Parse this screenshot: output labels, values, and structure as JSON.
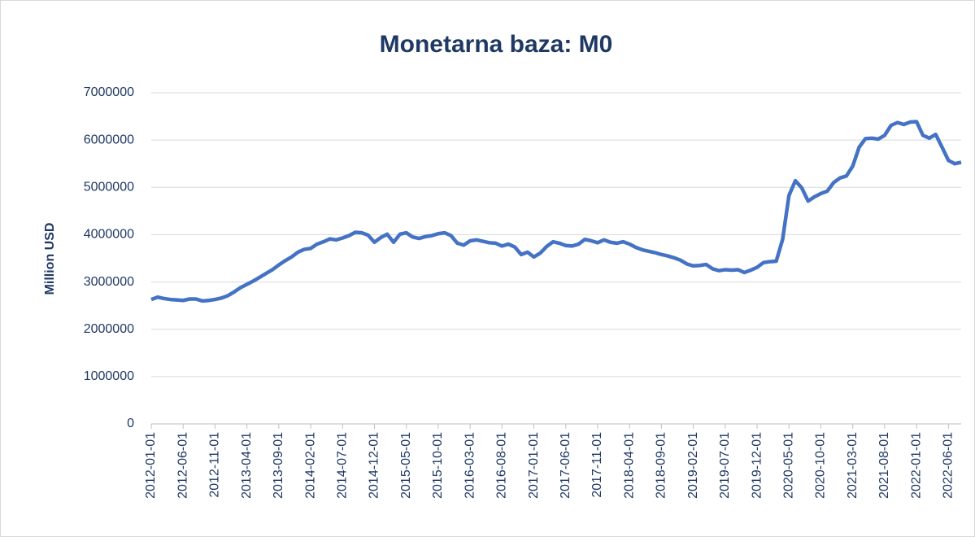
{
  "chart_data": {
    "type": "line",
    "title": "Monetarna baza: M0",
    "y_label": "Million USD",
    "categories": [
      "2012-01-01",
      null,
      null,
      null,
      null,
      "2012-06-01",
      null,
      null,
      null,
      null,
      "2012-11-01",
      null,
      null,
      null,
      null,
      "2013-04-01",
      null,
      null,
      null,
      null,
      "2013-09-01",
      null,
      null,
      null,
      null,
      "2014-02-01",
      null,
      null,
      null,
      null,
      "2014-07-01",
      null,
      null,
      null,
      null,
      "2014-12-01",
      null,
      null,
      null,
      null,
      "2015-05-01",
      null,
      null,
      null,
      null,
      "2015-10-01",
      null,
      null,
      null,
      null,
      "2016-03-01",
      null,
      null,
      null,
      null,
      "2016-08-01",
      null,
      null,
      null,
      null,
      "2017-01-01",
      null,
      null,
      null,
      null,
      "2017-06-01",
      null,
      null,
      null,
      null,
      "2017-11-01",
      null,
      null,
      null,
      null,
      "2018-04-01",
      null,
      null,
      null,
      null,
      "2018-09-01",
      null,
      null,
      null,
      null,
      "2019-02-01",
      null,
      null,
      null,
      null,
      "2019-07-01",
      null,
      null,
      null,
      null,
      "2019-12-01",
      null,
      null,
      null,
      null,
      "2020-05-01",
      null,
      null,
      null,
      null,
      "2020-10-01",
      null,
      null,
      null,
      null,
      "2021-03-01",
      null,
      null,
      null,
      null,
      "2021-08-01",
      null,
      null,
      null,
      null,
      "2022-01-01",
      null,
      null,
      null,
      null,
      "2022-06-01",
      null,
      null
    ],
    "series": [
      {
        "name": "M0",
        "color": "#4472c4",
        "values": [
          2630000,
          2680000,
          2650000,
          2630000,
          2620000,
          2610000,
          2640000,
          2640000,
          2600000,
          2610000,
          2630000,
          2660000,
          2710000,
          2790000,
          2880000,
          2950000,
          3020000,
          3100000,
          3180000,
          3260000,
          3360000,
          3450000,
          3530000,
          3630000,
          3690000,
          3710000,
          3800000,
          3850000,
          3910000,
          3890000,
          3930000,
          3980000,
          4050000,
          4040000,
          3990000,
          3840000,
          3940000,
          4010000,
          3840000,
          4010000,
          4040000,
          3950000,
          3920000,
          3960000,
          3980000,
          4020000,
          4040000,
          3980000,
          3820000,
          3780000,
          3870000,
          3890000,
          3860000,
          3830000,
          3820000,
          3760000,
          3800000,
          3740000,
          3580000,
          3630000,
          3530000,
          3610000,
          3750000,
          3850000,
          3820000,
          3770000,
          3760000,
          3800000,
          3900000,
          3870000,
          3830000,
          3890000,
          3840000,
          3820000,
          3850000,
          3800000,
          3730000,
          3680000,
          3650000,
          3620000,
          3580000,
          3550000,
          3510000,
          3460000,
          3380000,
          3340000,
          3350000,
          3370000,
          3280000,
          3240000,
          3260000,
          3250000,
          3260000,
          3200000,
          3250000,
          3310000,
          3410000,
          3430000,
          3440000,
          3900000,
          4830000,
          5140000,
          4990000,
          4710000,
          4800000,
          4870000,
          4920000,
          5100000,
          5200000,
          5240000,
          5450000,
          5850000,
          6030000,
          6040000,
          6020000,
          6100000,
          6310000,
          6370000,
          6330000,
          6380000,
          6390000,
          6100000,
          6040000,
          6120000,
          5850000,
          5570000,
          5500000,
          5530000
        ]
      }
    ],
    "ylim": [
      0,
      7000000
    ],
    "yticks": [
      0,
      1000000,
      2000000,
      3000000,
      4000000,
      5000000,
      6000000,
      7000000
    ],
    "grid": true
  }
}
